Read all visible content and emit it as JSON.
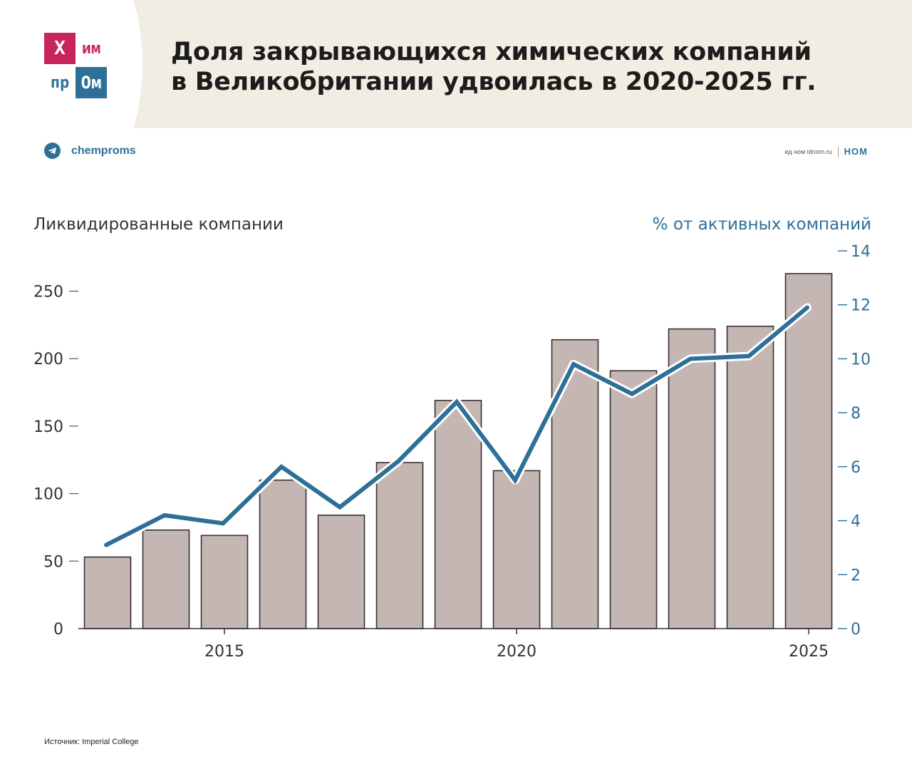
{
  "header": {
    "logo": {
      "c1": "Х",
      "c2": "им",
      "c3": "пр",
      "c4": "Ом"
    },
    "title_line1": "Доля закрывающихся химических компаний",
    "title_line2": "в Великобритании удвоилась в 2020-2025 гг."
  },
  "telegram_label": "chemproms",
  "publisher": {
    "small": "ид ном idnom.ru",
    "mark": "НОМ"
  },
  "source": "Источник: Imperial College",
  "colors": {
    "bar": "#c4b7b3",
    "bar_stroke": "#3a3030",
    "line": "#2e6f98",
    "accent_red": "#c8265b"
  },
  "chart_data": {
    "type": "bar",
    "title": "",
    "left_axis_label": "Ликвидированные компании",
    "right_axis_label": "% от активных компаний",
    "x": [
      2013,
      2014,
      2015,
      2016,
      2017,
      2018,
      2019,
      2020,
      2021,
      2022,
      2023,
      2024,
      2025
    ],
    "x_ticks": [
      2015,
      2020,
      2025
    ],
    "y_left_ticks": [
      0,
      50,
      100,
      150,
      200,
      250
    ],
    "y_left_range": [
      0,
      264
    ],
    "y_right_ticks": [
      0,
      2,
      4,
      6,
      8,
      10,
      12,
      14
    ],
    "y_right_range": [
      0,
      14
    ],
    "series": [
      {
        "type": "bar",
        "axis": "left",
        "values": [
          53,
          73,
          69,
          110,
          84,
          123,
          169,
          117,
          214,
          191,
          222,
          224,
          263
        ]
      },
      {
        "type": "line",
        "axis": "right",
        "values": [
          3.1,
          4.2,
          3.9,
          6.0,
          4.5,
          6.2,
          8.4,
          5.5,
          9.8,
          8.7,
          10.0,
          10.1,
          11.9
        ]
      }
    ],
    "grid": false,
    "legend": "none"
  }
}
